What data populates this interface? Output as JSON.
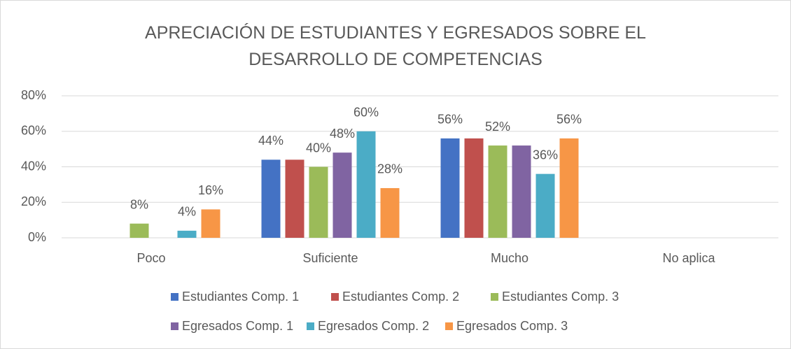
{
  "chart_data": {
    "type": "bar",
    "title": "APRECIACIÓN DE ESTUDIANTES Y EGRESADOS SOBRE EL DESARROLLO DE COMPETENCIAS",
    "categories": [
      "Poco",
      "Suficiente",
      "Mucho",
      "No aplica"
    ],
    "series": [
      {
        "name": "Estudiantes Comp. 1",
        "color": "#4472c4",
        "values": [
          0,
          44,
          56,
          0
        ],
        "value_labels": [
          null,
          "44%",
          "56%",
          null
        ]
      },
      {
        "name": "Estudiantes Comp. 2",
        "color": "#c0504d",
        "values": [
          0,
          44,
          56,
          0
        ],
        "value_labels": [
          null,
          null,
          null,
          null
        ]
      },
      {
        "name": "Estudiantes Comp. 3",
        "color": "#9bbb59",
        "values": [
          8,
          40,
          52,
          0
        ],
        "value_labels": [
          "8%",
          "40%",
          "52%",
          null
        ]
      },
      {
        "name": "Egresados Comp. 1",
        "color": "#8064a2",
        "values": [
          0,
          48,
          52,
          0
        ],
        "value_labels": [
          null,
          "48%",
          null,
          null
        ]
      },
      {
        "name": "Egresados Comp. 2",
        "color": "#4bacc6",
        "values": [
          4,
          60,
          36,
          0
        ],
        "value_labels": [
          "4%",
          "60%",
          "36%",
          null
        ]
      },
      {
        "name": "Egresados Comp. 3",
        "color": "#f79646",
        "values": [
          16,
          28,
          56,
          0
        ],
        "value_labels": [
          "16%",
          "28%",
          "56%",
          null
        ]
      }
    ],
    "ylim": [
      0,
      80
    ],
    "yticks": [
      {
        "value": 0,
        "label": "0%"
      },
      {
        "value": 20,
        "label": "20%"
      },
      {
        "value": 40,
        "label": "40%"
      },
      {
        "value": 60,
        "label": "60%"
      },
      {
        "value": 80,
        "label": "80%"
      }
    ],
    "grid": true,
    "legend": "bottom"
  }
}
